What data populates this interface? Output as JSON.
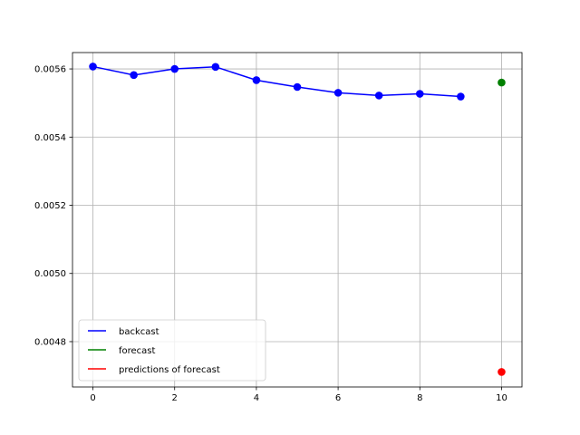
{
  "chart_data": {
    "type": "line",
    "title": "",
    "xlabel": "",
    "ylabel": "",
    "xlim": [
      -0.5,
      10.5
    ],
    "ylim": [
      0.004667,
      0.005648
    ],
    "x_ticks": [
      0,
      2,
      4,
      6,
      8,
      10
    ],
    "x_tick_labels": [
      "0",
      "2",
      "4",
      "6",
      "8",
      "10"
    ],
    "y_ticks": [
      0.0048,
      0.005,
      0.0052,
      0.0054,
      0.0056
    ],
    "y_tick_labels": [
      "0.0048",
      "0.0050",
      "0.0052",
      "0.0054",
      "0.0056"
    ],
    "grid": true,
    "legend_position": "lower-left",
    "series": [
      {
        "name": "backcast",
        "color": "#0000ff",
        "style": "line-with-markers",
        "x": [
          0,
          1,
          2,
          3,
          4,
          5,
          6,
          7,
          8,
          9
        ],
        "y": [
          0.005607,
          0.005582,
          0.0056,
          0.005606,
          0.005567,
          0.005547,
          0.00553,
          0.005522,
          0.005527,
          0.005519
        ]
      },
      {
        "name": "forecast",
        "color": "#008000",
        "style": "marker",
        "x": [
          10
        ],
        "y": [
          0.00556
        ]
      },
      {
        "name": "predictions of forecast",
        "color": "#ff0000",
        "style": "marker",
        "x": [
          10
        ],
        "y": [
          0.004711
        ]
      }
    ]
  }
}
